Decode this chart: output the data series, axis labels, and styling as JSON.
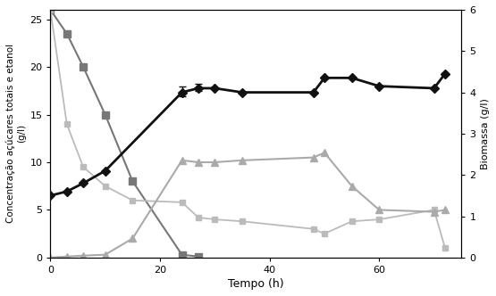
{
  "time_biomass": [
    0,
    3,
    6,
    10,
    24,
    27,
    30,
    35,
    48,
    50,
    55,
    60,
    70,
    72
  ],
  "biomass": [
    1.5,
    1.6,
    1.8,
    2.1,
    4.0,
    4.1,
    4.1,
    4.0,
    4.0,
    4.35,
    4.35,
    4.15,
    4.1,
    4.45
  ],
  "biomass_err_upper": [
    0,
    0,
    0,
    0,
    0.15,
    0.1,
    0,
    0,
    0,
    0,
    0,
    0,
    0,
    0
  ],
  "biomass_err_lower": [
    0,
    0,
    0,
    0,
    0.1,
    0.07,
    0,
    0,
    0,
    0,
    0,
    0,
    0,
    0
  ],
  "time_sugar": [
    0,
    3,
    6,
    10,
    15,
    24,
    27
  ],
  "sugar": [
    26.0,
    23.5,
    20.0,
    15.0,
    8.0,
    0.3,
    0.1
  ],
  "time_ethanol": [
    0,
    3,
    6,
    10,
    15,
    24,
    27,
    30,
    35,
    48,
    50,
    55,
    60,
    70,
    72
  ],
  "ethanol": [
    0.0,
    0.1,
    0.2,
    0.3,
    2.0,
    10.2,
    10.0,
    10.0,
    10.2,
    10.5,
    11.0,
    7.5,
    5.0,
    4.8,
    5.0
  ],
  "time_residual": [
    0,
    3,
    6,
    10,
    15,
    24,
    27,
    30,
    35,
    48,
    50,
    55,
    60,
    70,
    72
  ],
  "residual": [
    26.0,
    14.0,
    9.5,
    7.5,
    6.0,
    5.8,
    4.2,
    4.0,
    3.8,
    3.0,
    2.5,
    3.8,
    4.0,
    5.0,
    1.0
  ],
  "color_biomass": "#111111",
  "color_sugar": "#777777",
  "color_ethanol": "#aaaaaa",
  "color_residual": "#bbbbbb",
  "ylabel_left": "Concentração açúcares totais e etanol\n(g/l)",
  "ylabel_right": "Biomassa (g/l)",
  "xlabel": "Tempo (h)",
  "ylim_left": [
    0,
    26
  ],
  "ylim_right": [
    0,
    6
  ],
  "xlim": [
    0,
    75
  ],
  "yticks_left": [
    0,
    5,
    10,
    15,
    20,
    25
  ],
  "yticks_right": [
    0,
    1,
    2,
    3,
    4,
    5,
    6
  ],
  "xticks": [
    0,
    20,
    40,
    60
  ]
}
